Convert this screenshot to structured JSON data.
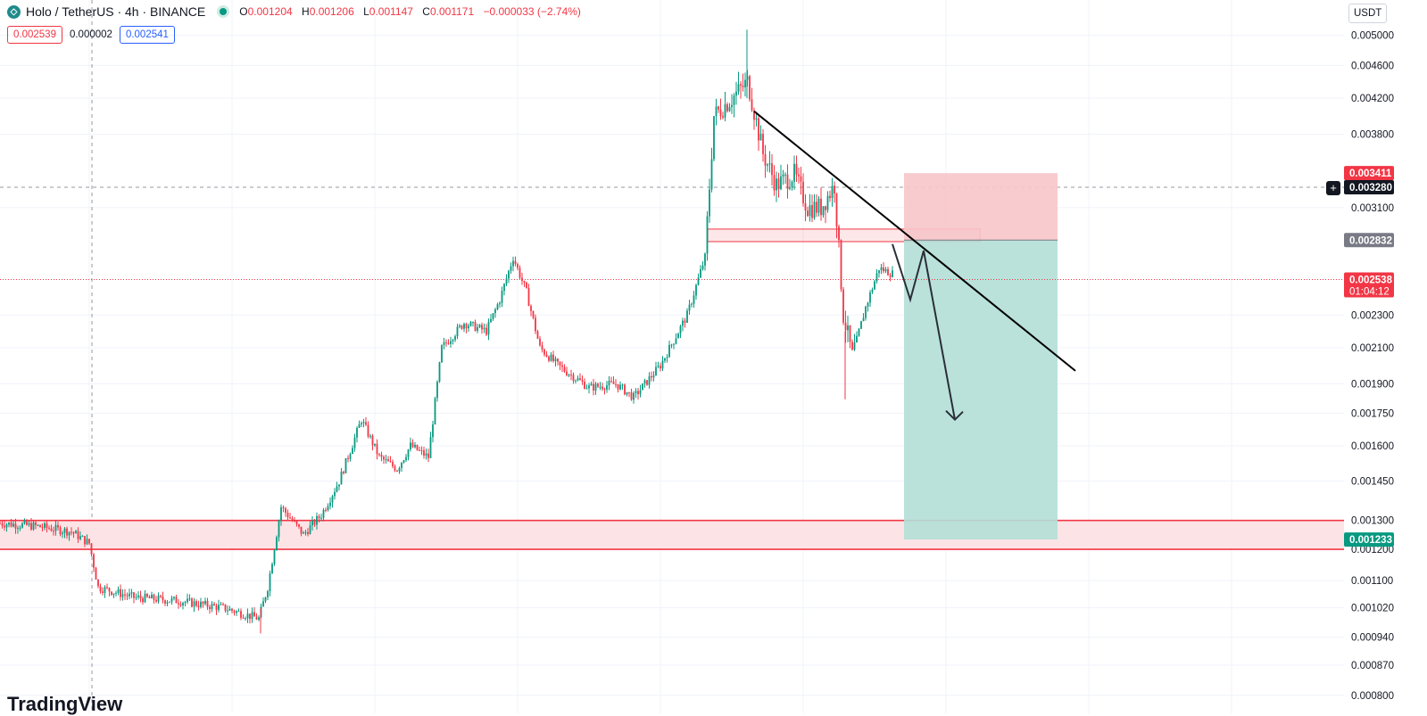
{
  "header": {
    "symbol_title": "Holo / TetherUS · 4h · BINANCE",
    "ohlc": [
      {
        "label": "O",
        "value": "0.001204"
      },
      {
        "label": "H",
        "value": "0.001206"
      },
      {
        "label": "L",
        "value": "0.001147"
      },
      {
        "label": "C",
        "value": "0.001171"
      }
    ],
    "change": "−0.000033 (−2.74%)",
    "bid": "0.002539",
    "spread": "0.000002",
    "ask": "0.002541",
    "currency_button": "USDT"
  },
  "colors": {
    "up": "#089981",
    "down": "#f23645",
    "zone_fill": "#fce4e6",
    "stop_fill": "#f7c5c9",
    "target_fill": "#b2dfd6"
  },
  "icons": [
    "holo-logo-icon",
    "live-status-icon",
    "add-alert-icon"
  ],
  "watermark": "TradingView",
  "chart_data": {
    "type": "candlestick",
    "y_scale": "log",
    "ylim": [
      0.00078,
      0.00525
    ],
    "y_ticks": [
      "0.005000",
      "0.004600",
      "0.004200",
      "0.003800",
      "0.003100",
      "0.002300",
      "0.002100",
      "0.001900",
      "0.001750",
      "0.001600",
      "0.001450",
      "0.001300",
      "0.001200",
      "0.001100",
      "0.001020",
      "0.000940",
      "0.000870",
      "0.000800"
    ],
    "price_path": [
      [
        0,
        0.00129
      ],
      [
        40,
        0.00128
      ],
      [
        80,
        0.00126
      ],
      [
        100,
        0.00122
      ],
      [
        110,
        0.00108
      ],
      [
        150,
        0.00105
      ],
      [
        200,
        0.00104
      ],
      [
        250,
        0.00102
      ],
      [
        290,
        0.00099
      ],
      [
        300,
        0.00108
      ],
      [
        315,
        0.00135
      ],
      [
        340,
        0.00125
      ],
      [
        360,
        0.00132
      ],
      [
        380,
        0.00145
      ],
      [
        405,
        0.00172
      ],
      [
        425,
        0.00155
      ],
      [
        445,
        0.0015
      ],
      [
        460,
        0.0016
      ],
      [
        480,
        0.00155
      ],
      [
        495,
        0.0021
      ],
      [
        520,
        0.00225
      ],
      [
        545,
        0.0022
      ],
      [
        560,
        0.0024
      ],
      [
        575,
        0.0027
      ],
      [
        590,
        0.00245
      ],
      [
        605,
        0.0021
      ],
      [
        625,
        0.002
      ],
      [
        660,
        0.00188
      ],
      [
        690,
        0.0019
      ],
      [
        710,
        0.00183
      ],
      [
        740,
        0.002
      ],
      [
        770,
        0.0023
      ],
      [
        790,
        0.0027
      ],
      [
        800,
        0.004
      ],
      [
        820,
        0.0042
      ],
      [
        838,
        0.0044
      ],
      [
        855,
        0.0036
      ],
      [
        870,
        0.0033
      ],
      [
        890,
        0.0034
      ],
      [
        905,
        0.0031
      ],
      [
        920,
        0.0031
      ],
      [
        935,
        0.0033
      ],
      [
        945,
        0.0023
      ],
      [
        955,
        0.00205
      ],
      [
        970,
        0.00235
      ],
      [
        985,
        0.00262
      ],
      [
        1000,
        0.00258
      ]
    ],
    "extreme_low": "0.000950",
    "extreme_high": "0.005080",
    "price_labels": [
      {
        "value": "0.003411",
        "kind": "stop"
      },
      {
        "value": "0.003280",
        "kind": "crosshair"
      },
      {
        "value": "0.002832",
        "kind": "entry"
      },
      {
        "value": "0.002538",
        "kind": "last",
        "countdown": "01:04:12"
      },
      {
        "value": "0.001233",
        "kind": "target"
      }
    ],
    "zones": [
      {
        "name": "support",
        "low": 0.0012,
        "high": 0.0013
      },
      {
        "name": "resistance",
        "low": 0.00282,
        "high": 0.00292
      }
    ],
    "position": {
      "side": "short",
      "entry": 0.002832,
      "stop": 0.003411,
      "target": 0.001233
    },
    "trendline": [
      [
        845,
        0.00405
      ],
      [
        1205,
        0.00197
      ]
    ],
    "projection": [
      [
        1000,
        0.0028
      ],
      [
        1020,
        0.0024
      ],
      [
        1035,
        0.00275
      ],
      [
        1070,
        0.00172
      ]
    ]
  }
}
